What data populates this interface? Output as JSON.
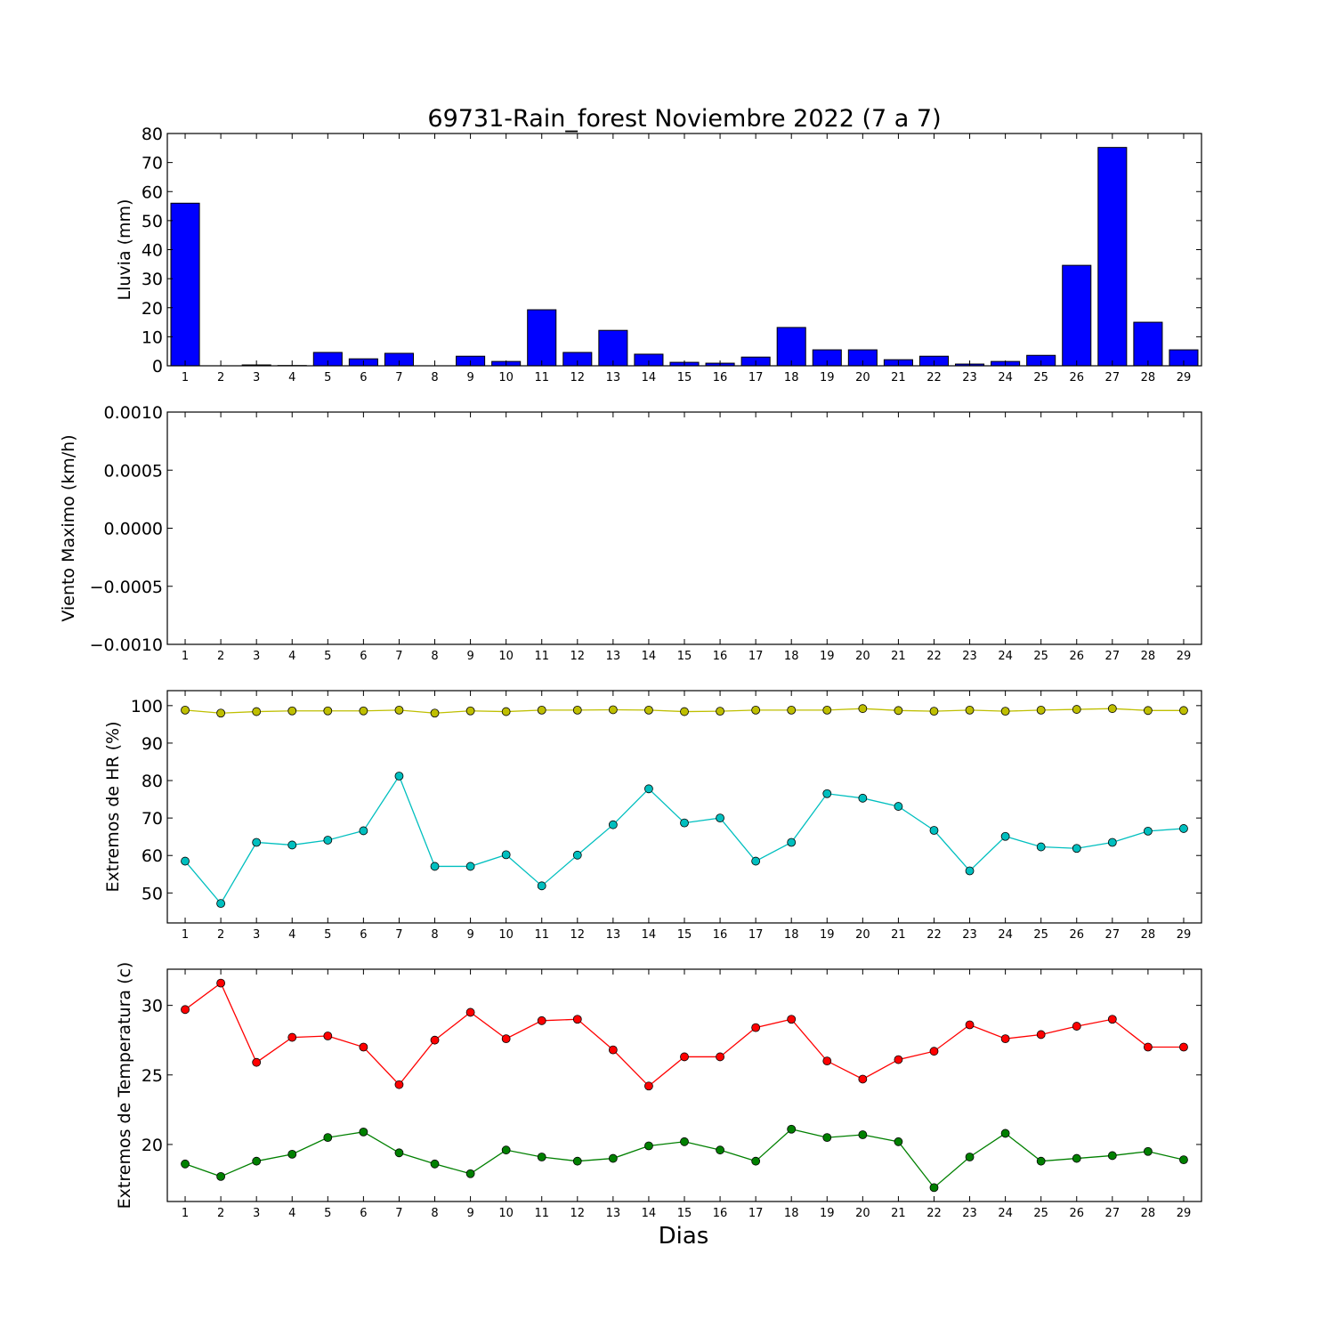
{
  "figure": {
    "title": "69731-Rain_forest Noviembre 2022  (7 a 7)",
    "xlabel": "Dias"
  },
  "chart_data": [
    {
      "type": "bar",
      "ylabel": "Lluvia (mm)",
      "ylim": [
        0,
        80
      ],
      "yticks": [
        0,
        10,
        20,
        30,
        40,
        50,
        60,
        70,
        80
      ],
      "ytick_labels": [
        "0",
        "10",
        "20",
        "30",
        "40",
        "50",
        "60",
        "70",
        "80"
      ],
      "categories": [
        1,
        2,
        3,
        4,
        5,
        6,
        7,
        8,
        9,
        10,
        11,
        12,
        13,
        14,
        15,
        16,
        17,
        18,
        19,
        20,
        21,
        22,
        23,
        24,
        25,
        26,
        27,
        28,
        29
      ],
      "series": [
        {
          "color": "#0000ff",
          "values": [
            56,
            0,
            0.3,
            0.1,
            4.6,
            2.4,
            4.3,
            0,
            3.3,
            1.5,
            19.3,
            4.6,
            12.2,
            4.0,
            1.2,
            0.9,
            3.0,
            13.2,
            5.5,
            5.5,
            2.1,
            3.3,
            0.6,
            1.5,
            3.6,
            34.6,
            75.2,
            15.0,
            5.5
          ]
        }
      ]
    },
    {
      "type": "line",
      "ylabel": "Viento Maximo (km/h)",
      "ylim": [
        -0.001,
        0.001
      ],
      "yticks": [
        -0.001,
        -0.0005,
        0,
        0.0005,
        0.001
      ],
      "ytick_labels": [
        "−0.0010",
        "−0.0005",
        "0.0000",
        "0.0005",
        "0.0010"
      ],
      "categories": [
        1,
        2,
        3,
        4,
        5,
        6,
        7,
        8,
        9,
        10,
        11,
        12,
        13,
        14,
        15,
        16,
        17,
        18,
        19,
        20,
        21,
        22,
        23,
        24,
        25,
        26,
        27,
        28,
        29
      ],
      "series": []
    },
    {
      "type": "line",
      "ylabel": "Extremos de HR (%)",
      "ylim": [
        42,
        104
      ],
      "yticks": [
        50,
        60,
        70,
        80,
        90,
        100
      ],
      "ytick_labels": [
        "50",
        "60",
        "70",
        "80",
        "90",
        "100"
      ],
      "categories": [
        1,
        2,
        3,
        4,
        5,
        6,
        7,
        8,
        9,
        10,
        11,
        12,
        13,
        14,
        15,
        16,
        17,
        18,
        19,
        20,
        21,
        22,
        23,
        24,
        25,
        26,
        27,
        28,
        29
      ],
      "series": [
        {
          "color": "#bfbf00",
          "values": [
            98.8,
            98.0,
            98.4,
            98.6,
            98.6,
            98.6,
            98.8,
            98.0,
            98.6,
            98.4,
            98.8,
            98.8,
            98.9,
            98.8,
            98.4,
            98.5,
            98.8,
            98.8,
            98.8,
            99.2,
            98.7,
            98.5,
            98.8,
            98.5,
            98.8,
            99.0,
            99.2,
            98.7,
            98.7
          ]
        },
        {
          "color": "#00bfbf",
          "values": [
            58.5,
            47.2,
            63.5,
            62.8,
            64.1,
            66.6,
            81.2,
            57.1,
            57.1,
            60.2,
            51.9,
            60.1,
            68.2,
            77.8,
            68.7,
            70.0,
            58.5,
            63.5,
            76.5,
            75.3,
            73.1,
            66.7,
            55.9,
            65.1,
            62.3,
            61.9,
            63.5,
            66.5,
            67.2
          ]
        }
      ]
    },
    {
      "type": "line",
      "ylabel": "Extremos de Temperatura (c)",
      "ylim": [
        15.9,
        32.6
      ],
      "yticks": [
        20,
        25,
        30
      ],
      "ytick_labels": [
        "20",
        "25",
        "30"
      ],
      "categories": [
        1,
        2,
        3,
        4,
        5,
        6,
        7,
        8,
        9,
        10,
        11,
        12,
        13,
        14,
        15,
        16,
        17,
        18,
        19,
        20,
        21,
        22,
        23,
        24,
        25,
        26,
        27,
        28,
        29
      ],
      "series": [
        {
          "color": "#ff0000",
          "values": [
            29.7,
            31.6,
            25.9,
            27.7,
            27.8,
            27.0,
            24.3,
            27.5,
            29.5,
            27.6,
            28.9,
            29.0,
            26.8,
            24.2,
            26.3,
            26.3,
            28.4,
            29.0,
            26.0,
            24.7,
            26.1,
            26.7,
            28.6,
            27.6,
            27.9,
            28.5,
            29.0,
            27.0,
            27.0
          ]
        },
        {
          "color": "#008000",
          "values": [
            18.6,
            17.7,
            18.8,
            19.3,
            20.5,
            20.9,
            19.4,
            18.6,
            17.9,
            19.6,
            19.1,
            18.8,
            19.0,
            19.9,
            20.2,
            19.6,
            18.8,
            21.1,
            20.5,
            20.7,
            20.2,
            16.9,
            19.1,
            20.8,
            18.8,
            19.0,
            19.2,
            19.5,
            18.9
          ]
        }
      ]
    }
  ]
}
